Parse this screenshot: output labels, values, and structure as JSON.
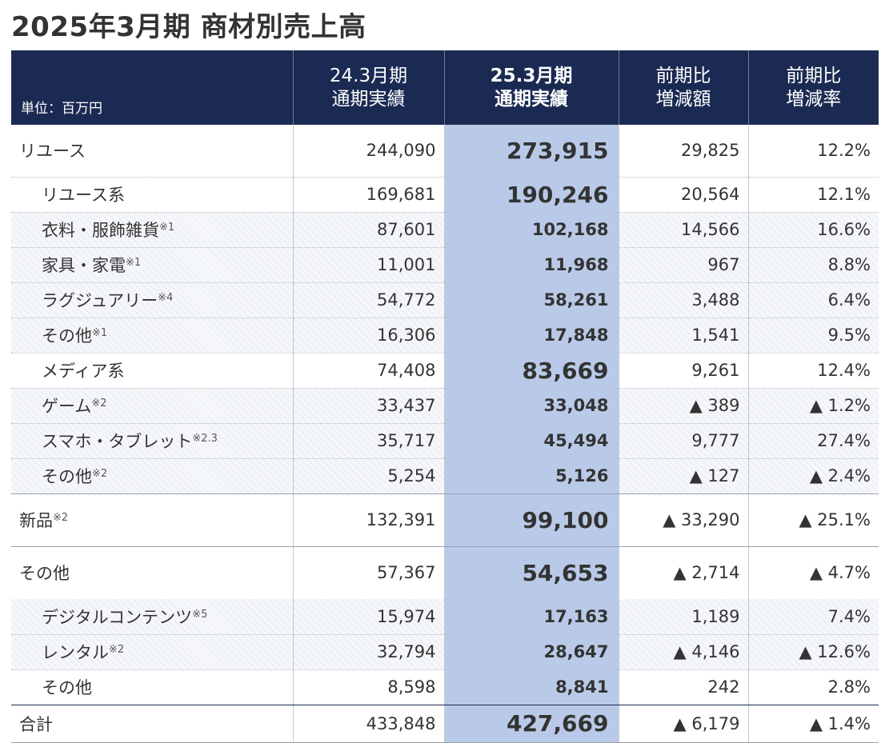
{
  "title": "2025年3月期 商材別売上高",
  "header": {
    "unit": "単位：百万円",
    "col_prev": [
      "24.3月期",
      "通期実績"
    ],
    "col_cur": [
      "25.3月期",
      "通期実績"
    ],
    "col_diff": [
      "前期比",
      "増減額"
    ],
    "col_rate": [
      "前期比",
      "増減率"
    ]
  },
  "rows": [
    {
      "label": "リユース",
      "note": "",
      "prev": "244,090",
      "cur": "273,915",
      "diff": "29,825",
      "rate": "12.2%"
    },
    {
      "label": "リユース系",
      "note": "",
      "prev": "169,681",
      "cur": "190,246",
      "diff": "20,564",
      "rate": "12.1%"
    },
    {
      "label": "衣料・服飾雑貨",
      "note": "※1",
      "prev": "87,601",
      "cur": "102,168",
      "diff": "14,566",
      "rate": "16.6%"
    },
    {
      "label": "家具・家電",
      "note": "※1",
      "prev": "11,001",
      "cur": "11,968",
      "diff": "967",
      "rate": "8.8%"
    },
    {
      "label": "ラグジュアリー",
      "note": "※4",
      "prev": "54,772",
      "cur": "58,261",
      "diff": "3,488",
      "rate": "6.4%"
    },
    {
      "label": "その他",
      "note": "※1",
      "prev": "16,306",
      "cur": "17,848",
      "diff": "1,541",
      "rate": "9.5%"
    },
    {
      "label": "メディア系",
      "note": "",
      "prev": "74,408",
      "cur": "83,669",
      "diff": "9,261",
      "rate": "12.4%"
    },
    {
      "label": "ゲーム",
      "note": "※2",
      "prev": "33,437",
      "cur": "33,048",
      "diff": "▲ 389",
      "rate": "▲ 1.2%"
    },
    {
      "label": "スマホ・タブレット",
      "note": "※2.3",
      "prev": "35,717",
      "cur": "45,494",
      "diff": "9,777",
      "rate": "27.4%"
    },
    {
      "label": "その他",
      "note": "※2",
      "prev": "5,254",
      "cur": "5,126",
      "diff": "▲ 127",
      "rate": "▲ 2.4%"
    },
    {
      "label": "新品",
      "note": "※2",
      "prev": "132,391",
      "cur": "99,100",
      "diff": "▲ 33,290",
      "rate": "▲ 25.1%"
    },
    {
      "label": "その他",
      "note": "",
      "prev": "57,367",
      "cur": "54,653",
      "diff": "▲ 2,714",
      "rate": "▲ 4.7%"
    },
    {
      "label": "デジタルコンテンツ",
      "note": "※5",
      "prev": "15,974",
      "cur": "17,163",
      "diff": "1,189",
      "rate": "7.4%"
    },
    {
      "label": "レンタル",
      "note": "※2",
      "prev": "32,794",
      "cur": "28,647",
      "diff": "▲ 4,146",
      "rate": "▲ 12.6%"
    },
    {
      "label": "その他",
      "note": "",
      "prev": "8,598",
      "cur": "8,841",
      "diff": "242",
      "rate": "2.8%"
    },
    {
      "label": "合計",
      "note": "",
      "prev": "433,848",
      "cur": "427,669",
      "diff": "▲ 6,179",
      "rate": "▲ 1.4%"
    }
  ],
  "colors": {
    "header_bg": "#1b2a52",
    "current_col_bg": "#b9cae8",
    "text": "#333333"
  }
}
